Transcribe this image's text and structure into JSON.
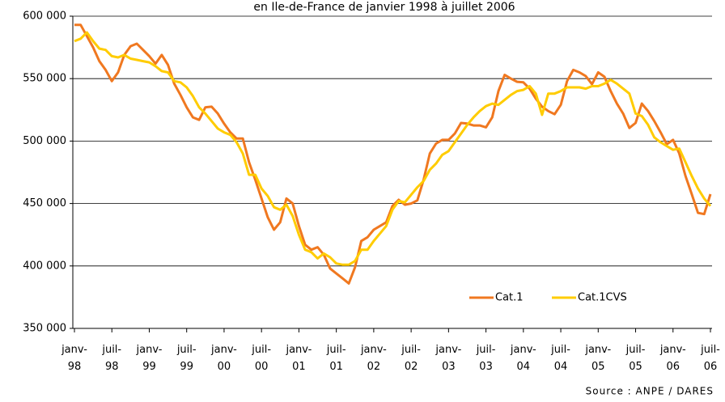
{
  "chart_data": {
    "type": "line",
    "title": "en Ile-de-France de janvier 1998 à juillet 2006",
    "source": "Source : ANPE / DARES",
    "categories": [
      "janv-98",
      null,
      null,
      null,
      null,
      null,
      "juil-98",
      null,
      null,
      null,
      null,
      null,
      "janv-99",
      null,
      null,
      null,
      null,
      null,
      "juil-99",
      null,
      null,
      null,
      null,
      null,
      "janv-00",
      null,
      null,
      null,
      null,
      null,
      "juil-00",
      null,
      null,
      null,
      null,
      null,
      "janv-01",
      null,
      null,
      null,
      null,
      null,
      "juil-01",
      null,
      null,
      null,
      null,
      null,
      "janv-02",
      null,
      null,
      null,
      null,
      null,
      "juil-02",
      null,
      null,
      null,
      null,
      null,
      "janv-03",
      null,
      null,
      null,
      null,
      null,
      "juil-03",
      null,
      null,
      null,
      null,
      null,
      "janv-04",
      null,
      null,
      null,
      null,
      null,
      "juil-04",
      null,
      null,
      null,
      null,
      null,
      "janv-05",
      null,
      null,
      null,
      null,
      null,
      "juil-05",
      null,
      null,
      null,
      null,
      null,
      "janv-06",
      null,
      null,
      null,
      null,
      null,
      "juil-06"
    ],
    "series": [
      {
        "name": "Cat.1",
        "color": "#f07820",
        "values": [
          593000,
          593000,
          584000,
          575000,
          564000,
          557000,
          548000,
          555000,
          569000,
          576000,
          578000,
          573000,
          568000,
          562000,
          569000,
          561000,
          546000,
          537000,
          527000,
          519000,
          517000,
          527000,
          527500,
          522000,
          514000,
          507000,
          502000,
          502000,
          483000,
          469000,
          454000,
          439000,
          429000,
          435000,
          454000,
          450000,
          432000,
          417000,
          413000,
          415000,
          409000,
          398000,
          394000,
          390000,
          386000,
          399000,
          420000,
          423000,
          429000,
          432000,
          435000,
          448000,
          453000,
          449000,
          450000,
          452500,
          469000,
          490000,
          498000,
          501000,
          501000,
          506000,
          514500,
          514000,
          512500,
          512500,
          511000,
          519000,
          540000,
          553000,
          550000,
          547500,
          547000,
          542000,
          534000,
          527500,
          524000,
          521500,
          529000,
          548000,
          557000,
          555000,
          552000,
          545500,
          555000,
          551500,
          540000,
          530000,
          522000,
          510500,
          514500,
          530000,
          524000,
          516000,
          507000,
          497500,
          501000,
          490000,
          472000,
          457500,
          442500,
          441500,
          457500
        ]
      },
      {
        "name": "Cat.1CVS",
        "color": "#ffcc00",
        "values": [
          580000,
          582000,
          587000,
          580000,
          574000,
          573000,
          568000,
          567000,
          569000,
          566000,
          565000,
          564000,
          563000,
          560000,
          556000,
          555000,
          548000,
          547000,
          543000,
          536000,
          527000,
          522000,
          516000,
          510000,
          507000,
          505000,
          499000,
          490000,
          473000,
          473000,
          462000,
          456000,
          447000,
          445000,
          449000,
          440000,
          425000,
          413000,
          411000,
          406000,
          410000,
          407000,
          402000,
          401000,
          401000,
          404000,
          413000,
          413000,
          420000,
          426000,
          432000,
          445000,
          452000,
          451000,
          457000,
          463000,
          468000,
          477000,
          482000,
          489000,
          492000,
          499000,
          506000,
          513000,
          519000,
          524000,
          528000,
          530000,
          529000,
          533000,
          537000,
          540000,
          541000,
          544000,
          538000,
          521000,
          538000,
          538000,
          540000,
          543000,
          543000,
          543000,
          542000,
          544000,
          544000,
          546000,
          549000,
          546000,
          542000,
          538000,
          522000,
          520000,
          513000,
          503000,
          499000,
          496000,
          493000,
          494000,
          483000,
          472000,
          462000,
          454000,
          448000
        ]
      }
    ],
    "ylim": [
      350000,
      600000
    ],
    "yticks": [
      {
        "value": 350000,
        "label": "350 000"
      },
      {
        "value": 400000,
        "label": "400 000"
      },
      {
        "value": 450000,
        "label": "450 000"
      },
      {
        "value": 500000,
        "label": "500 000"
      },
      {
        "value": 550000,
        "label": "550 000"
      },
      {
        "value": 600000,
        "label": "600 000"
      }
    ],
    "grid": true,
    "legend": "lower right"
  }
}
